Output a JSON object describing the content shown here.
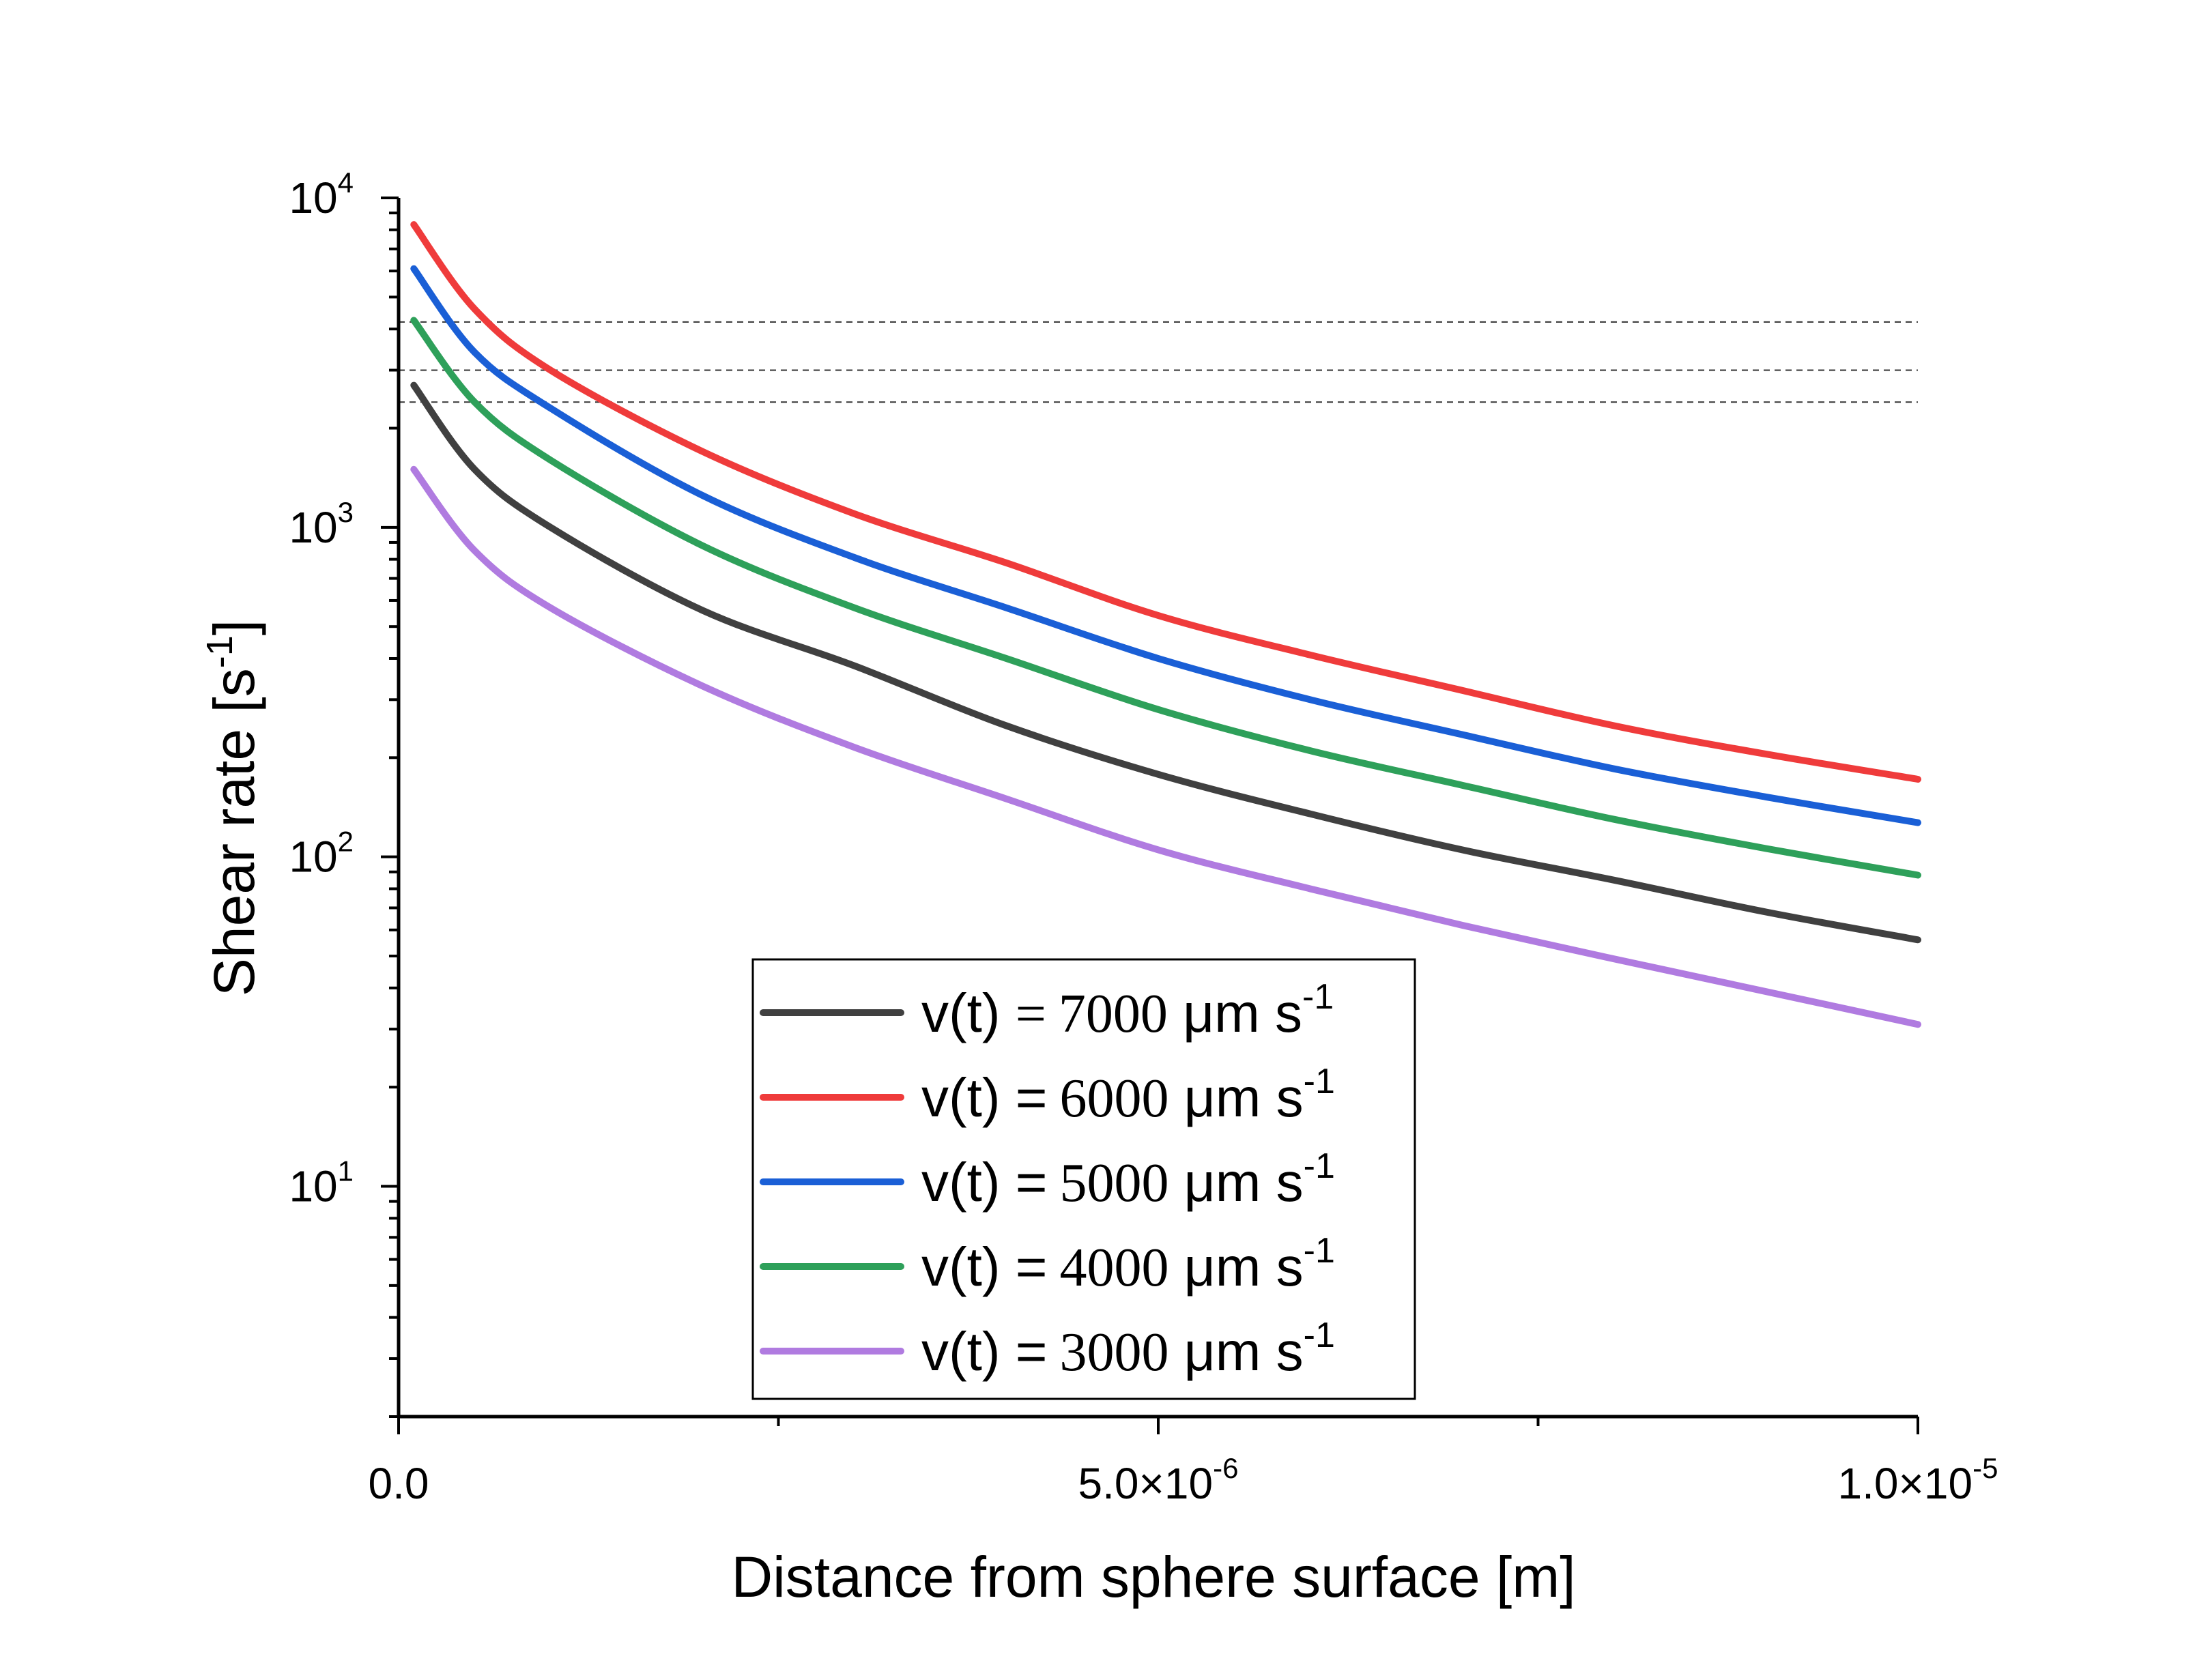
{
  "chart_data": {
    "type": "line",
    "title": "",
    "xlabel": "Distance from sphere surface [m]",
    "ylabel": "Shear rate [s",
    "ylabel_sup": "-1",
    "ylabel_suffix": "]",
    "xscale": "linear",
    "yscale": "log",
    "xlim": [
      0,
      1e-05
    ],
    "ylim": [
      2,
      10000
    ],
    "x_ticks": [
      {
        "value": 0,
        "mantissa": "0.0",
        "exp": ""
      },
      {
        "value": 5e-06,
        "mantissa": "5.0×10",
        "exp": "-6"
      },
      {
        "value": 1e-05,
        "mantissa": "1.0×10",
        "exp": "-5"
      }
    ],
    "y_ticks": [
      {
        "value": 10,
        "base": "10",
        "exp": "1"
      },
      {
        "value": 100,
        "base": "10",
        "exp": "2"
      },
      {
        "value": 1000,
        "base": "10",
        "exp": "3"
      },
      {
        "value": 10000,
        "base": "10",
        "exp": "4"
      }
    ],
    "reference_lines_y": [
      4200,
      3000,
      2400
    ],
    "grid": false,
    "legend_position": "bottom-center",
    "x": [
      1e-07,
      5e-07,
      1e-06,
      2e-06,
      3e-06,
      4e-06,
      5e-06,
      6e-06,
      7e-06,
      8e-06,
      9e-06,
      1e-05
    ],
    "series": [
      {
        "prefix": "v(t) ",
        "eq": "=",
        "num": "7000",
        "unit": " μm s",
        "sup": "-1",
        "color": "#404040",
        "values": [
          2700,
          1500,
          1000,
          560,
          380,
          250,
          178,
          135,
          105,
          85,
          68,
          56
        ]
      },
      {
        "prefix": "v(t) ",
        "eq": "=",
        "num": "6000",
        "unit": " μm s",
        "sup": "-1",
        "color": "#ef3b3b",
        "values": [
          8300,
          4600,
          3000,
          1700,
          1100,
          780,
          540,
          410,
          320,
          250,
          205,
          172
        ]
      },
      {
        "prefix": "v(t) ",
        "eq": "=",
        "num": "5000",
        "unit": " μm s",
        "sup": "-1",
        "color": "#1a5fd6",
        "values": [
          6100,
          3400,
          2300,
          1250,
          810,
          570,
          400,
          300,
          235,
          185,
          152,
          127
        ]
      },
      {
        "prefix": "v(t) ",
        "eq": "=",
        "num": "4000",
        "unit": " μm s",
        "sup": "-1",
        "color": "#2ea05a",
        "values": [
          4250,
          2400,
          1600,
          880,
          570,
          400,
          280,
          210,
          165,
          130,
          106,
          88
        ]
      },
      {
        "prefix": "v(t) ",
        "eq": "=",
        "num": "3000",
        "unit": " μm s",
        "sup": "-1",
        "color": "#b07be0",
        "values": [
          1500,
          850,
          570,
          330,
          215,
          150,
          105,
          80,
          62,
          49,
          39,
          31
        ]
      }
    ]
  }
}
